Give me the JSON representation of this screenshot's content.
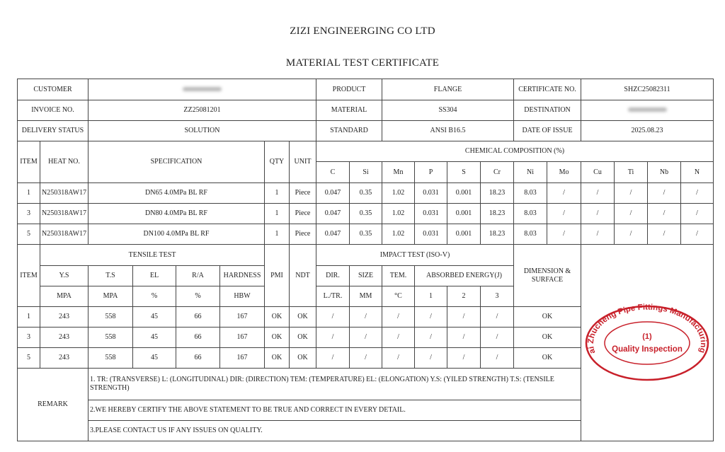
{
  "header": {
    "company": "ZIZI ENGINEERGING CO LTD",
    "title": "MATERIAL TEST CERTIFICATE"
  },
  "info": {
    "customer_label": "CUSTOMER",
    "customer_value": "",
    "product_label": "PRODUCT",
    "product_value": "FLANGE",
    "certificate_label": "CERTIFICATE NO.",
    "certificate_value": "SHZC25082311",
    "invoice_label": "INVOICE NO.",
    "invoice_value": "ZZ25081201",
    "material_label": "MATERIAL",
    "material_value": "SS304",
    "destination_label": "DESTINATION",
    "destination_value": "",
    "delivery_label": "DELIVERY STATUS",
    "delivery_value": "SOLUTION",
    "standard_label": "STANDARD",
    "standard_value": "ANSI B16.5",
    "date_label": "DATE OF ISSUE",
    "date_value": "2025.08.23"
  },
  "chem": {
    "headers": {
      "item": "ITEM",
      "heat": "HEAT NO.",
      "spec": "SPECIFICATION",
      "qty": "QTY",
      "unit": "UNIT",
      "composition": "CHEMICAL COMPOSITION (%)"
    },
    "elements": [
      "C",
      "Si",
      "Mn",
      "P",
      "S",
      "Cr",
      "Ni",
      "Mo",
      "Cu",
      "Ti",
      "Nb",
      "N"
    ],
    "rows": [
      {
        "item": "1",
        "heat": "N250318AW17",
        "spec": "DN65 4.0MPa BL RF",
        "qty": "1",
        "unit": "Piece",
        "values": [
          "0.047",
          "0.35",
          "1.02",
          "0.031",
          "0.001",
          "18.23",
          "8.03",
          "/",
          "/",
          "/",
          "/",
          "/"
        ]
      },
      {
        "item": "3",
        "heat": "N250318AW17",
        "spec": "DN80 4.0MPa BL RF",
        "qty": "1",
        "unit": "Piece",
        "values": [
          "0.047",
          "0.35",
          "1.02",
          "0.031",
          "0.001",
          "18.23",
          "8.03",
          "/",
          "/",
          "/",
          "/",
          "/"
        ]
      },
      {
        "item": "5",
        "heat": "N250318AW17",
        "spec": "DN100 4.0MPa BL RF",
        "qty": "1",
        "unit": "Piece",
        "values": [
          "0.047",
          "0.35",
          "1.02",
          "0.031",
          "0.001",
          "18.23",
          "8.03",
          "/",
          "/",
          "/",
          "/",
          "/"
        ]
      }
    ]
  },
  "tests": {
    "headers": {
      "item": "ITEM",
      "tensile": "TENSILE TEST",
      "pmi": "PMI",
      "ndt": "NDT",
      "impact": "IMPACT TEST  (ISO-V)",
      "dimension": "DIMENSION & SURFACE",
      "ys": "Y.S",
      "ts": "T.S",
      "el": "EL",
      "ra": "R/A",
      "hardness": "HARDNESS",
      "dir": "DIR.",
      "size": "SIZE",
      "tem": "TEM.",
      "energy": "ABSORBED ENERGY(J)"
    },
    "units": [
      "MPA",
      "MPA",
      "%",
      "%",
      "HBW",
      "L./TR.",
      "MM",
      "°C",
      "1",
      "2",
      "3"
    ],
    "rows": [
      {
        "item": "1",
        "values": [
          "243",
          "558",
          "45",
          "66",
          "167",
          "OK",
          "OK",
          "/",
          "/",
          "/",
          "/",
          "/",
          "/"
        ],
        "dimension": "OK"
      },
      {
        "item": "3",
        "values": [
          "243",
          "558",
          "45",
          "66",
          "167",
          "OK",
          "OK",
          "/",
          "/",
          "/",
          "/",
          "/",
          "/"
        ],
        "dimension": "OK"
      },
      {
        "item": "5",
        "values": [
          "243",
          "558",
          "45",
          "66",
          "167",
          "OK",
          "OK",
          "/",
          "/",
          "/",
          "/",
          "/",
          "/"
        ],
        "dimension": "OK"
      }
    ]
  },
  "remark": {
    "label": "REMARK",
    "lines": [
      "1. TR: (TRANSVERSE) L: (LONGITUDINAL) DIR: (DIRECTION) TEM: (TEMPERATURE) EL: (ELONGATION) Y.S: (YILED STRENGTH) T.S: (TENSILE STRENGTH)",
      "2.WE HEREBY CERTIFY THE ABOVE STATEMENT TO BE TRUE AND CORRECT IN EVERY DETAIL.",
      "3.PLEASE CONTACT US IF ANY ISSUES ON QUALITY."
    ]
  },
  "stamp": {
    "ring_text": "Shanghai Zhucheng Pipe Fittings Manufacturing Co.,Ltd",
    "number": "(1)",
    "center_text": "Quality Inspection",
    "color": "#c8202a"
  }
}
